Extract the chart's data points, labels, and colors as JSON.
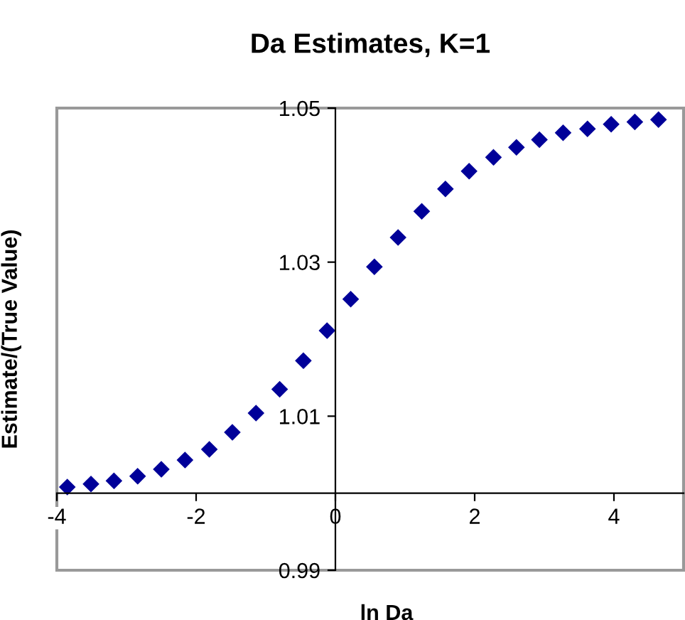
{
  "chart_data": {
    "type": "scatter",
    "title": "Da Estimates, K=1",
    "xlabel": "ln Da",
    "ylabel": "Estimate/(True Value)",
    "x": [
      -3.85,
      -3.51,
      -3.18,
      -2.84,
      -2.5,
      -2.16,
      -1.81,
      -1.48,
      -1.14,
      -0.8,
      -0.46,
      -0.12,
      0.22,
      0.56,
      0.9,
      1.24,
      1.58,
      1.92,
      2.27,
      2.6,
      2.93,
      3.27,
      3.62,
      3.96,
      4.3,
      4.64
    ],
    "series": [
      {
        "color": "#000099",
        "values": [
          1.0008,
          1.0012,
          1.0016,
          1.0022,
          1.0031,
          1.0043,
          1.0057,
          1.0079,
          1.0104,
          1.0135,
          1.0172,
          1.0211,
          1.0252,
          1.0294,
          1.0332,
          1.0366,
          1.0395,
          1.0418,
          1.0436,
          1.0449,
          1.0459,
          1.0468,
          1.0473,
          1.0479,
          1.0482,
          1.0485
        ]
      }
    ],
    "xlim": [
      -4,
      5
    ],
    "ylim": [
      0.99,
      1.05
    ],
    "xticks": [
      -4,
      -2,
      0,
      2,
      4
    ],
    "yticks": [
      0.99,
      1.01,
      1.03,
      1.05
    ],
    "marker": "diamond",
    "grid": false,
    "legend": false
  }
}
